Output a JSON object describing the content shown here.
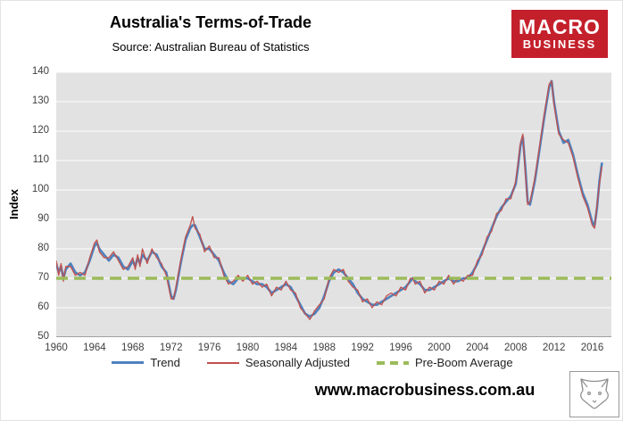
{
  "header": {
    "title": "Australia's Terms-of-Trade",
    "subtitle": "Source: Australian Bureau of Statistics"
  },
  "logo": {
    "line1": "MACRO",
    "line2": "BUSINESS",
    "bg_color": "#c4202c"
  },
  "footer": {
    "url": "www.macrobusiness.com.au"
  },
  "chart_data": {
    "type": "line",
    "title": "Australia's Terms-of-Trade",
    "subtitle": "Source: Australian Bureau of Statistics",
    "xlabel": "",
    "ylabel": "Index",
    "ylim": [
      50,
      140
    ],
    "xlim": [
      1960,
      2018
    ],
    "yticks": [
      50,
      60,
      70,
      80,
      90,
      100,
      110,
      120,
      130,
      140
    ],
    "xticks": [
      1960,
      1964,
      1968,
      1972,
      1976,
      1980,
      1984,
      1988,
      1992,
      1996,
      2000,
      2004,
      2008,
      2012,
      2016
    ],
    "grid": "horizontal",
    "legend_position": "bottom",
    "plot_bg_color": "#e2e2e2",
    "gridline_color": "#ffffff",
    "series": [
      {
        "name": "Trend",
        "color": "#4F81BD",
        "style": "solid"
      },
      {
        "name": "Seasonally Adjusted",
        "color": "#C0504D",
        "style": "solid"
      },
      {
        "name": "Pre-Boom Average",
        "color": "#9BBB59",
        "style": "dashed",
        "value": 70
      }
    ],
    "points": [
      [
        1960,
        75,
        76
      ],
      [
        1960.25,
        72,
        71
      ],
      [
        1960.5,
        74,
        75
      ],
      [
        1960.75,
        70,
        69
      ],
      [
        1961,
        73,
        74
      ],
      [
        1961.5,
        75,
        74
      ],
      [
        1962,
        72,
        71
      ],
      [
        1962.5,
        71,
        72
      ],
      [
        1963,
        72,
        71
      ],
      [
        1963.5,
        76,
        77
      ],
      [
        1964,
        81,
        82
      ],
      [
        1964.25,
        82,
        83
      ],
      [
        1964.5,
        80,
        79
      ],
      [
        1965,
        78,
        77
      ],
      [
        1965.5,
        76,
        77
      ],
      [
        1966,
        78,
        79
      ],
      [
        1966.5,
        77,
        76
      ],
      [
        1967,
        74,
        73
      ],
      [
        1967.5,
        73,
        74
      ],
      [
        1968,
        76,
        77
      ],
      [
        1968.25,
        74,
        73
      ],
      [
        1968.5,
        77,
        78
      ],
      [
        1968.75,
        75,
        74
      ],
      [
        1969,
        78,
        80
      ],
      [
        1969.5,
        76,
        75
      ],
      [
        1970,
        79,
        80
      ],
      [
        1970.5,
        78,
        77
      ],
      [
        1971,
        74,
        75
      ],
      [
        1971.5,
        72,
        71
      ],
      [
        1972,
        64,
        63
      ],
      [
        1972.25,
        63,
        63
      ],
      [
        1972.5,
        66,
        67
      ],
      [
        1973,
        75,
        76
      ],
      [
        1973.5,
        83,
        84
      ],
      [
        1974,
        87,
        88
      ],
      [
        1974.25,
        88,
        91
      ],
      [
        1974.5,
        88,
        87
      ],
      [
        1975,
        84,
        85
      ],
      [
        1975.5,
        80,
        79
      ],
      [
        1976,
        80,
        81
      ],
      [
        1976.5,
        78,
        77
      ],
      [
        1977,
        76,
        77
      ],
      [
        1977.5,
        72,
        71
      ],
      [
        1978,
        69,
        68
      ],
      [
        1978.5,
        68,
        69
      ],
      [
        1979,
        70,
        71
      ],
      [
        1979.5,
        70,
        69
      ],
      [
        1980,
        70,
        71
      ],
      [
        1980.5,
        69,
        68
      ],
      [
        1981,
        68,
        69
      ],
      [
        1981.5,
        68,
        67
      ],
      [
        1982,
        67,
        68
      ],
      [
        1982.5,
        65,
        64
      ],
      [
        1983,
        66,
        67
      ],
      [
        1983.5,
        67,
        66
      ],
      [
        1984,
        68,
        69
      ],
      [
        1984.5,
        67,
        66
      ],
      [
        1985,
        64,
        65
      ],
      [
        1985.5,
        61,
        60
      ],
      [
        1986,
        58,
        58
      ],
      [
        1986.5,
        57,
        56
      ],
      [
        1987,
        58,
        59
      ],
      [
        1987.5,
        60,
        61
      ],
      [
        1988,
        64,
        63
      ],
      [
        1988.5,
        69,
        70
      ],
      [
        1989,
        72,
        73
      ],
      [
        1989.5,
        73,
        72
      ],
      [
        1990,
        72,
        73
      ],
      [
        1990.5,
        70,
        69
      ],
      [
        1991,
        68,
        67
      ],
      [
        1991.5,
        65,
        66
      ],
      [
        1992,
        63,
        62
      ],
      [
        1992.5,
        62,
        63
      ],
      [
        1993,
        61,
        60
      ],
      [
        1993.5,
        61,
        62
      ],
      [
        1994,
        62,
        61
      ],
      [
        1994.5,
        63,
        64
      ],
      [
        1995,
        64,
        65
      ],
      [
        1995.5,
        65,
        64
      ],
      [
        1996,
        66,
        67
      ],
      [
        1996.5,
        67,
        66
      ],
      [
        1997,
        69,
        70
      ],
      [
        1997.25,
        70,
        70
      ],
      [
        1997.5,
        69,
        68
      ],
      [
        1998,
        68,
        69
      ],
      [
        1998.5,
        66,
        65
      ],
      [
        1999,
        66,
        67
      ],
      [
        1999.5,
        67,
        66
      ],
      [
        2000,
        68,
        69
      ],
      [
        2000.5,
        69,
        68
      ],
      [
        2001,
        70,
        71
      ],
      [
        2001.5,
        69,
        68
      ],
      [
        2002,
        69,
        70
      ],
      [
        2002.5,
        70,
        69
      ],
      [
        2003,
        70,
        71
      ],
      [
        2003.5,
        72,
        71
      ],
      [
        2004,
        75,
        76
      ],
      [
        2004.5,
        79,
        78
      ],
      [
        2005,
        83,
        84
      ],
      [
        2005.5,
        87,
        86
      ],
      [
        2006,
        91,
        92
      ],
      [
        2006.5,
        94,
        93
      ],
      [
        2007,
        96,
        97
      ],
      [
        2007.5,
        98,
        97
      ],
      [
        2008,
        102,
        103
      ],
      [
        2008.25,
        108,
        109
      ],
      [
        2008.5,
        115,
        116
      ],
      [
        2008.75,
        118,
        119
      ],
      [
        2009,
        108,
        106
      ],
      [
        2009.25,
        96,
        95
      ],
      [
        2009.5,
        95,
        96
      ],
      [
        2010,
        103,
        104
      ],
      [
        2010.5,
        114,
        115
      ],
      [
        2011,
        125,
        126
      ],
      [
        2011.25,
        130,
        131
      ],
      [
        2011.5,
        135,
        136
      ],
      [
        2011.75,
        137,
        137
      ],
      [
        2012,
        130,
        129
      ],
      [
        2012.5,
        120,
        119
      ],
      [
        2013,
        116,
        117
      ],
      [
        2013.5,
        117,
        116
      ],
      [
        2014,
        112,
        111
      ],
      [
        2014.5,
        105,
        104
      ],
      [
        2015,
        99,
        98
      ],
      [
        2015.5,
        95,
        94
      ],
      [
        2016,
        89,
        88
      ],
      [
        2016.25,
        88,
        87
      ],
      [
        2016.5,
        94,
        95
      ],
      [
        2016.75,
        103,
        102
      ],
      [
        2017,
        109,
        108
      ]
    ]
  }
}
